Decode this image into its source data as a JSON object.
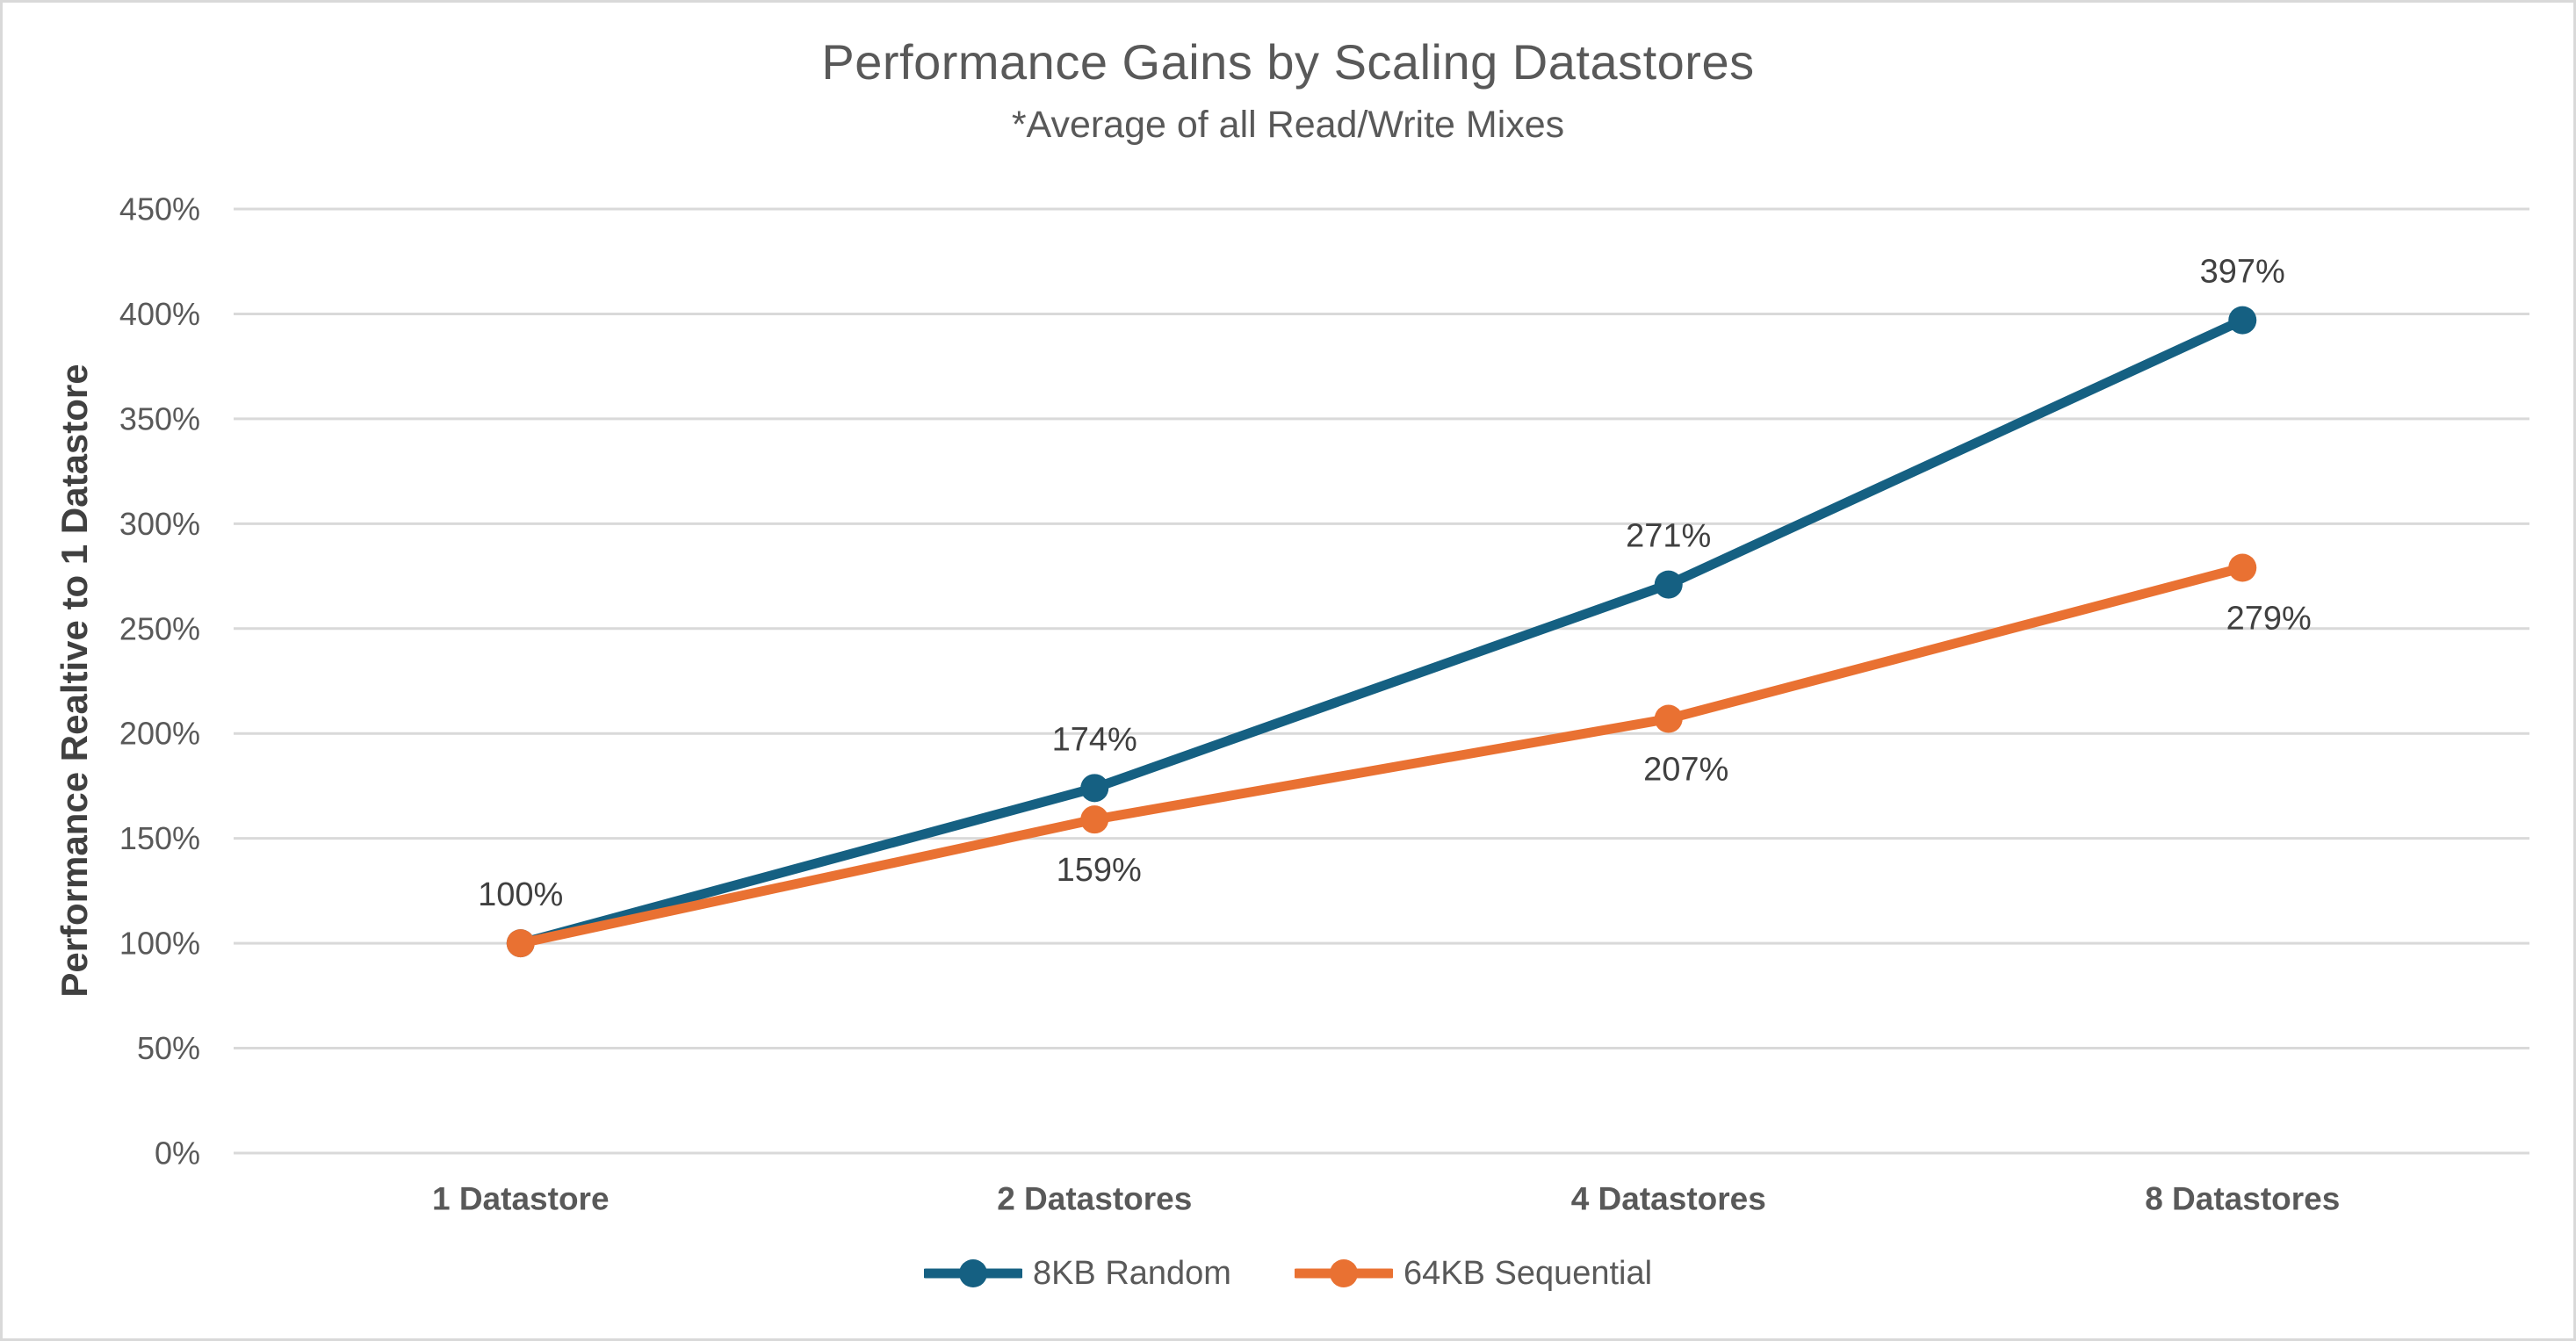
{
  "chart_data": {
    "type": "line",
    "title": "Performance Gains by Scaling Datastores",
    "subtitle": "*Average of all Read/Write Mixes",
    "ylabel": "Performance Realtive to 1 Datastore",
    "xlabel": "",
    "categories": [
      "1 Datastore",
      "2 Datastores",
      "4 Datastores",
      "8 Datastores"
    ],
    "series": [
      {
        "name": "8KB Random",
        "color": "#156082",
        "values": [
          100,
          174,
          271,
          397
        ],
        "data_labels": [
          "100%",
          "174%",
          "271%",
          "397%"
        ],
        "show_labels": [
          true,
          true,
          true,
          true
        ],
        "label_position": "above",
        "label_dx": [
          0,
          0,
          0,
          0
        ]
      },
      {
        "name": "64KB Sequential",
        "color": "#E97132",
        "values": [
          100,
          159,
          207,
          279
        ],
        "data_labels": [
          "100%",
          "159%",
          "207%",
          "279%"
        ],
        "show_labels": [
          false,
          true,
          true,
          true
        ],
        "label_position": "below",
        "label_dx": [
          0,
          5,
          20,
          30
        ]
      }
    ],
    "y_axis": {
      "min": 0,
      "max": 450,
      "step": 50,
      "tick_labels": [
        "0%",
        "50%",
        "100%",
        "150%",
        "200%",
        "250%",
        "300%",
        "350%",
        "400%",
        "450%"
      ]
    },
    "ylim": [
      0,
      450
    ],
    "grid": "horizontal",
    "legend_position": "bottom",
    "colors": {
      "gridline": "#D9D9D9",
      "border": "#D9D9D9",
      "title_text": "#595959",
      "axis_tick_text": "#595959",
      "axis_title_text": "#404040",
      "data_label_text": "#404040",
      "background": "#FFFFFF"
    }
  }
}
